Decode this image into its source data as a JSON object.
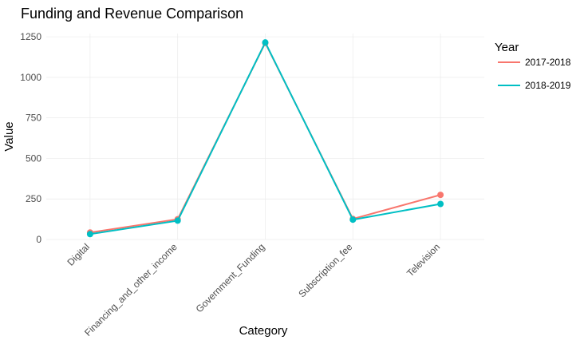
{
  "chart_data": {
    "type": "line",
    "title": "Funding and Revenue Comparison",
    "xlabel": "Category",
    "ylabel": "Value",
    "categories": [
      "Digital",
      "Financing_and_other_income",
      "Government_Funding",
      "Subscription_fee",
      "Television"
    ],
    "ylim": [
      0,
      1270
    ],
    "yticks": [
      0,
      250,
      500,
      750,
      1000,
      1250
    ],
    "grid": true,
    "legend": {
      "title": "Year",
      "position": "right"
    },
    "series": [
      {
        "name": "2017-2018",
        "color": "#f8766d",
        "values": [
          43,
          125,
          1212,
          127,
          275
        ]
      },
      {
        "name": "2018-2019",
        "color": "#00bfc4",
        "values": [
          33,
          116,
          1215,
          122,
          219
        ]
      }
    ]
  }
}
